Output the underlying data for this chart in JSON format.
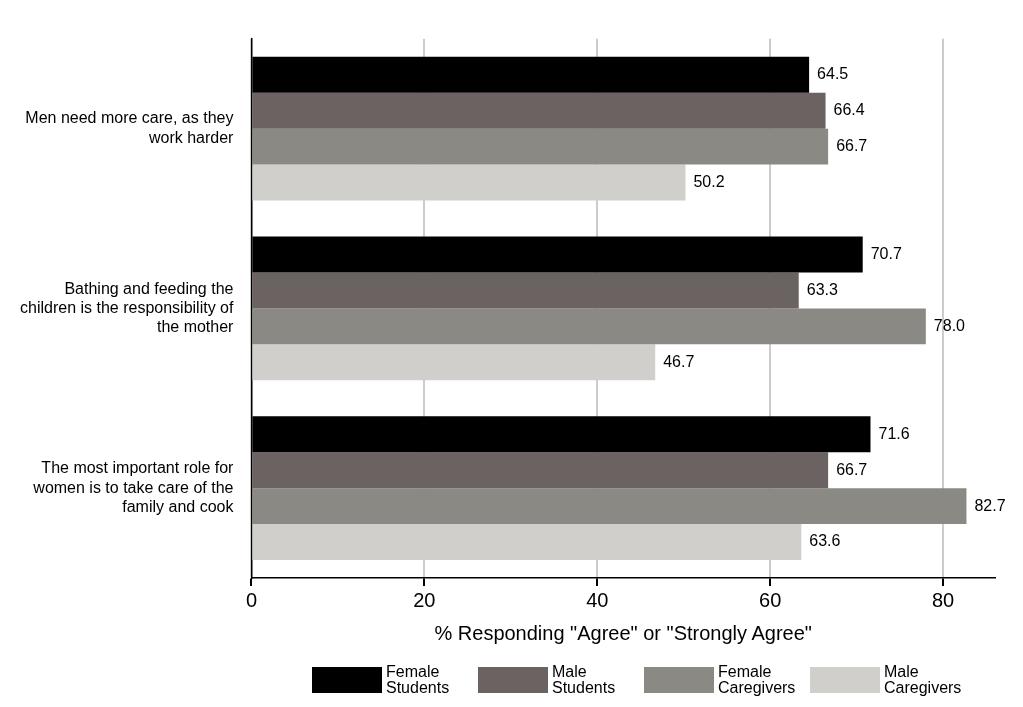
{
  "chart_data": {
    "type": "bar",
    "orientation": "horizontal",
    "xlabel": "% Responding \"Agree\" or \"Strongly Agree\"",
    "categories": [
      "Men need more care, as they work harder",
      "Bathing and feeding the children is the responsibility of the mother",
      "The most important role for women is to take care of the family and cook"
    ],
    "series": [
      {
        "name": "Female Students",
        "color": "#000000",
        "values": [
          64.5,
          70.7,
          71.6
        ],
        "value_labels": [
          "64.5",
          "70.7",
          "71.6"
        ]
      },
      {
        "name": "Male Students",
        "color": "#6b6361",
        "values": [
          66.4,
          63.3,
          66.7
        ],
        "value_labels": [
          "66.4",
          "63.3",
          "66.7"
        ]
      },
      {
        "name": "Female Caregivers",
        "color": "#8b8984",
        "values": [
          66.7,
          78.0,
          82.7
        ],
        "value_labels": [
          "66.7",
          "78.0",
          "82.7"
        ]
      },
      {
        "name": "Male Caregivers",
        "color": "#d0cfcb",
        "values": [
          50.2,
          46.7,
          63.6
        ],
        "value_labels": [
          "50.2",
          "46.7",
          "63.6"
        ]
      }
    ],
    "xlim": [
      0,
      86
    ],
    "xticks": [
      0,
      20,
      40,
      60,
      80
    ],
    "grid": "x",
    "legend": "bottom"
  }
}
